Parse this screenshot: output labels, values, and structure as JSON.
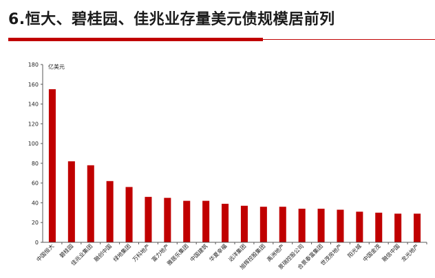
{
  "title": "6.恒大、碧桂园、佳兆业存量美元债规模居前列",
  "colors": {
    "accent": "#c00000",
    "axis": "#555555",
    "text": "#1a1a1a"
  },
  "chart_data": {
    "type": "bar",
    "title": "6.恒大、碧桂园、佳兆业存量美元债规模居前列",
    "unit_label": "亿美元",
    "ylim": [
      0,
      180
    ],
    "yticks": [
      0,
      20,
      40,
      60,
      80,
      100,
      120,
      140,
      160,
      180
    ],
    "grid": false,
    "categories": [
      "中国恒大",
      "碧桂园",
      "佳兆业集团",
      "融创中国",
      "绿地集团",
      "万科地产",
      "富力地产",
      "雅居乐集团",
      "中国建筑",
      "华夏幸福",
      "远洋集团",
      "旭辉控股集团",
      "禹洲地产",
      "景瑞控股公司",
      "合景泰富集团",
      "世茂房地产",
      "阳光城",
      "中国金茂",
      "融信中国",
      "龙光地产"
    ],
    "values": [
      155,
      82,
      78,
      62,
      56,
      46,
      45,
      42,
      42,
      39,
      37,
      36,
      36,
      34,
      34,
      33,
      31,
      30,
      29,
      29
    ]
  }
}
